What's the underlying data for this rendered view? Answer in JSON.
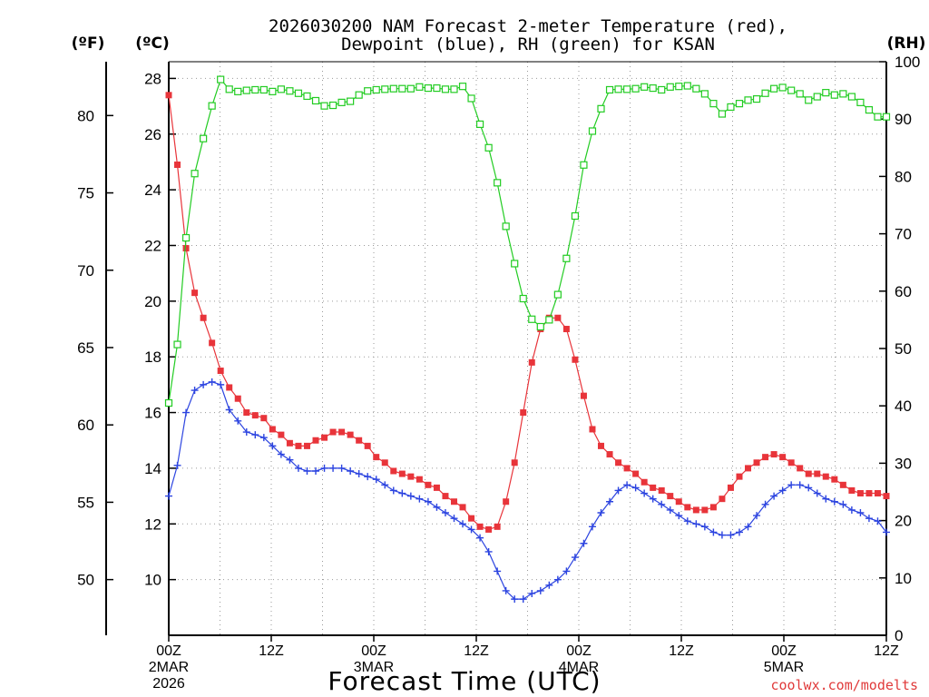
{
  "title_line1": "2026030200 NAM Forecast 2-meter Temperature (red),",
  "title_line2": "Dewpoint (blue), RH (green) for KSAN",
  "unit_f": "(ºF)",
  "unit_c": "(ºC)",
  "unit_rh": "(RH)",
  "credit": "coolwx.com/modelts",
  "colors": {
    "temp": "#e8343a",
    "dew": "#2c44e0",
    "rh": "#22cc22",
    "grid": "#9a9a9a"
  },
  "chart_data": {
    "type": "line",
    "title": "2026030200 NAM Forecast 2-meter Temperature (red), Dewpoint (blue), RH (green) for KSAN",
    "xlabel": "Forecast Time (UTC)",
    "x_hours_range": [
      0,
      84
    ],
    "x_ticks": [
      {
        "h": 0,
        "label": "00Z",
        "sub1": "2MAR",
        "sub2": "2026"
      },
      {
        "h": 12,
        "label": "12Z",
        "sub1": "",
        "sub2": ""
      },
      {
        "h": 24,
        "label": "00Z",
        "sub1": "3MAR",
        "sub2": ""
      },
      {
        "h": 36,
        "label": "12Z",
        "sub1": "",
        "sub2": ""
      },
      {
        "h": 48,
        "label": "00Z",
        "sub1": "4MAR",
        "sub2": ""
      },
      {
        "h": 60,
        "label": "12Z",
        "sub1": "",
        "sub2": ""
      },
      {
        "h": 72,
        "label": "00Z",
        "sub1": "5MAR",
        "sub2": ""
      },
      {
        "h": 84,
        "label": "12Z",
        "sub1": "",
        "sub2": ""
      }
    ],
    "y_celsius": {
      "range": [
        8,
        28.6
      ],
      "ticks": [
        10,
        12,
        14,
        16,
        18,
        20,
        22,
        24,
        26,
        28
      ]
    },
    "y_fahrenheit": {
      "ticks": [
        50,
        55,
        60,
        65,
        70,
        75,
        80
      ]
    },
    "y_rh": {
      "range": [
        0,
        100
      ],
      "ticks": [
        0,
        10,
        20,
        30,
        40,
        50,
        60,
        70,
        80,
        90,
        100
      ]
    },
    "series": [
      {
        "name": "Temperature",
        "unit": "C",
        "color": "temp",
        "marker": "filled-square",
        "values": [
          27.4,
          24.9,
          21.9,
          20.3,
          19.4,
          18.5,
          17.5,
          16.9,
          16.5,
          16.0,
          15.9,
          15.8,
          15.4,
          15.2,
          14.9,
          14.8,
          14.8,
          15.0,
          15.1,
          15.3,
          15.3,
          15.2,
          15.0,
          14.8,
          14.4,
          14.2,
          13.9,
          13.8,
          13.7,
          13.6,
          13.4,
          13.3,
          13.0,
          12.8,
          12.6,
          12.2,
          11.9,
          11.8,
          11.9,
          12.8,
          14.2,
          16.0,
          17.8,
          19.0,
          19.4,
          19.4,
          19.0,
          17.9,
          16.6,
          15.4,
          14.8,
          14.5,
          14.2,
          14.0,
          13.8,
          13.5,
          13.3,
          13.2,
          13.0,
          12.8,
          12.6,
          12.5,
          12.5,
          12.6,
          12.9,
          13.3,
          13.7,
          14.0,
          14.2,
          14.4,
          14.5,
          14.4,
          14.2,
          14.0,
          13.8,
          13.8,
          13.7,
          13.6,
          13.4,
          13.2,
          13.1,
          13.1,
          13.1,
          13.0
        ]
      },
      {
        "name": "Dewpoint",
        "unit": "C",
        "color": "dew",
        "marker": "plus",
        "values": [
          13.0,
          14.1,
          16.0,
          16.8,
          17.0,
          17.1,
          17.0,
          16.1,
          15.7,
          15.3,
          15.2,
          15.1,
          14.8,
          14.5,
          14.3,
          14.0,
          13.9,
          13.9,
          14.0,
          14.0,
          14.0,
          13.9,
          13.8,
          13.7,
          13.6,
          13.4,
          13.2,
          13.1,
          13.0,
          12.9,
          12.8,
          12.6,
          12.4,
          12.2,
          12.0,
          11.8,
          11.5,
          11.0,
          10.3,
          9.6,
          9.3,
          9.3,
          9.5,
          9.6,
          9.8,
          10.0,
          10.3,
          10.8,
          11.3,
          11.9,
          12.4,
          12.8,
          13.2,
          13.4,
          13.3,
          13.1,
          12.9,
          12.7,
          12.5,
          12.3,
          12.1,
          12.0,
          11.9,
          11.7,
          11.6,
          11.6,
          11.7,
          11.9,
          12.3,
          12.7,
          13.0,
          13.2,
          13.4,
          13.4,
          13.3,
          13.1,
          12.9,
          12.8,
          12.7,
          12.5,
          12.4,
          12.2,
          12.1,
          11.7
        ]
      },
      {
        "name": "Relative Humidity",
        "unit": "%",
        "color": "rh",
        "marker": "open-square",
        "values": [
          40.5,
          50.7,
          69.3,
          80.5,
          86.6,
          92.3,
          96.9,
          95.2,
          94.8,
          95.0,
          95.1,
          95.1,
          94.8,
          95.2,
          94.9,
          94.5,
          94.0,
          93.2,
          92.3,
          92.4,
          92.9,
          93.1,
          94.2,
          94.9,
          95.1,
          95.2,
          95.3,
          95.3,
          95.3,
          95.6,
          95.4,
          95.4,
          95.2,
          95.2,
          95.7,
          93.6,
          89.1,
          85.0,
          78.9,
          71.3,
          64.8,
          58.7,
          55.1,
          53.8,
          55.0,
          59.4,
          65.7,
          73.1,
          82.0,
          87.9,
          91.8,
          95.1,
          95.2,
          95.2,
          95.3,
          95.6,
          95.4,
          95.1,
          95.6,
          95.7,
          95.8,
          95.3,
          94.4,
          92.7,
          90.9,
          92.1,
          92.7,
          93.3,
          93.5,
          94.5,
          95.3,
          95.5,
          95.0,
          94.4,
          93.3,
          93.9,
          94.6,
          94.2,
          94.4,
          93.9,
          92.9,
          91.6,
          90.4,
          90.4
        ]
      }
    ]
  }
}
